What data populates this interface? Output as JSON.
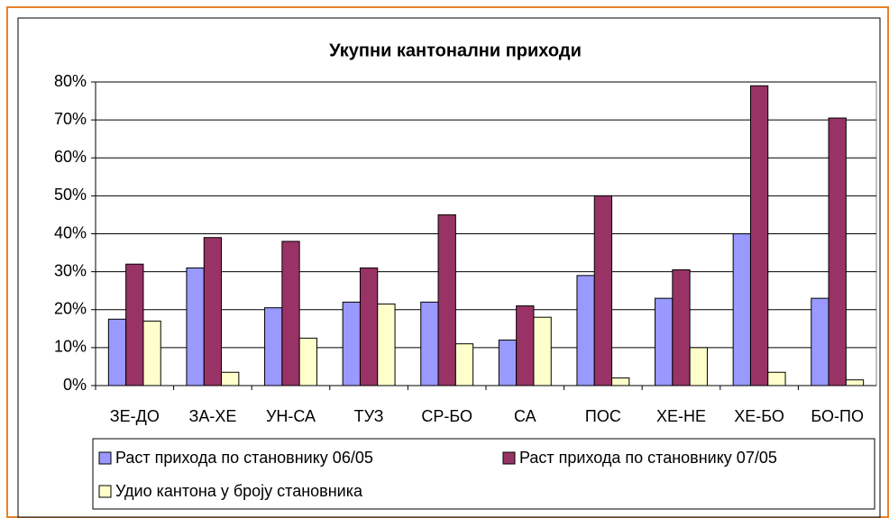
{
  "chart_data": {
    "type": "bar",
    "title": "Укупни кантонални приходи",
    "categories": [
      "ЗЕ-ДО",
      "ЗА-ХЕ",
      "УН-СА",
      "ТУЗ",
      "СР-БО",
      "СА",
      "ПОС",
      "ХЕ-НЕ",
      "ХЕ-БО",
      "БО-ПО"
    ],
    "series": [
      {
        "name": "Раст прихода по становнику 06/05",
        "color": "#9999ff",
        "values": [
          17.5,
          31,
          20.5,
          22,
          22,
          12,
          29,
          23,
          40,
          23
        ]
      },
      {
        "name": "Раст прихода по становнику 07/05",
        "color": "#993366",
        "values": [
          32,
          39,
          38,
          31,
          45,
          21,
          50,
          30.5,
          79,
          70.5
        ]
      },
      {
        "name": "Удио кантона у броју становника",
        "color": "#ffffcc",
        "values": [
          17,
          3.5,
          12.5,
          21.5,
          11,
          18,
          2,
          10,
          3.5,
          1.5
        ]
      }
    ],
    "ylim": [
      0,
      80
    ],
    "yticks": [
      {
        "value": 0,
        "label": "0%"
      },
      {
        "value": 10,
        "label": "10%"
      },
      {
        "value": 20,
        "label": "20%"
      },
      {
        "value": 30,
        "label": "30%"
      },
      {
        "value": 40,
        "label": "40%"
      },
      {
        "value": 50,
        "label": "50%"
      },
      {
        "value": 60,
        "label": "60%"
      },
      {
        "value": 70,
        "label": "70%"
      },
      {
        "value": 80,
        "label": "80%"
      }
    ],
    "grid": true
  }
}
